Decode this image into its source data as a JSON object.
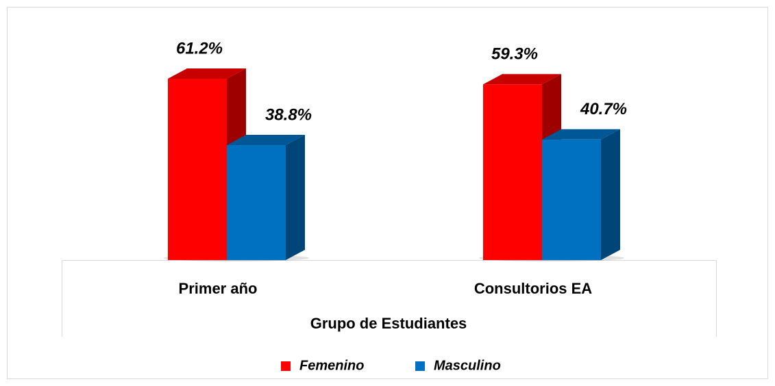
{
  "chart_data": {
    "type": "bar3d",
    "categories": [
      "Primer año",
      "Consultorios EA"
    ],
    "x_label": "Grupo de Estudiantes",
    "series": [
      {
        "name": "Femenino",
        "color": "#ff0000",
        "values": [
          61.2,
          59.3
        ],
        "value_labels": [
          "61.2%",
          "59.3%"
        ]
      },
      {
        "name": "Masculino",
        "color": "#0070c0",
        "values": [
          38.8,
          40.7
        ],
        "value_labels": [
          "38.8%",
          "40.7%"
        ]
      }
    ]
  }
}
